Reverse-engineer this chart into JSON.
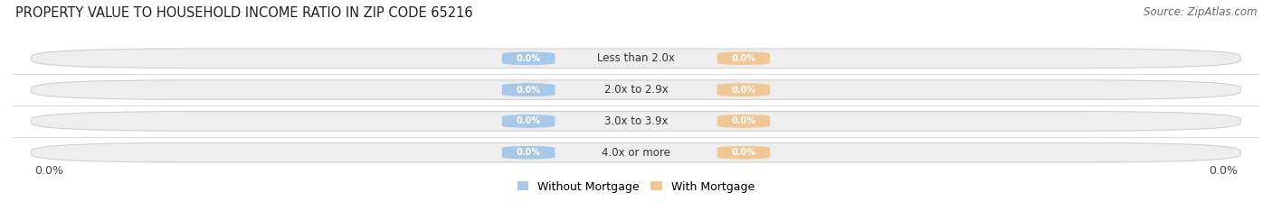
{
  "title": "PROPERTY VALUE TO HOUSEHOLD INCOME RATIO IN ZIP CODE 65216",
  "source": "Source: ZipAtlas.com",
  "categories": [
    "Less than 2.0x",
    "2.0x to 2.9x",
    "3.0x to 3.9x",
    "4.0x or more"
  ],
  "without_mortgage": [
    0.0,
    0.0,
    0.0,
    0.0
  ],
  "with_mortgage": [
    0.0,
    0.0,
    0.0,
    0.0
  ],
  "bar_color_without": "#a8c8e8",
  "bar_color_with": "#f0c898",
  "bg_color_bar": "#eeeeee",
  "bg_color_figure": "#ffffff",
  "left_label": "0.0%",
  "right_label": "0.0%",
  "title_fontsize": 10.5,
  "source_fontsize": 8.5,
  "label_fontsize": 9,
  "tick_fontsize": 9,
  "bar_height": 0.62,
  "xlim": [
    -1.0,
    1.0
  ]
}
